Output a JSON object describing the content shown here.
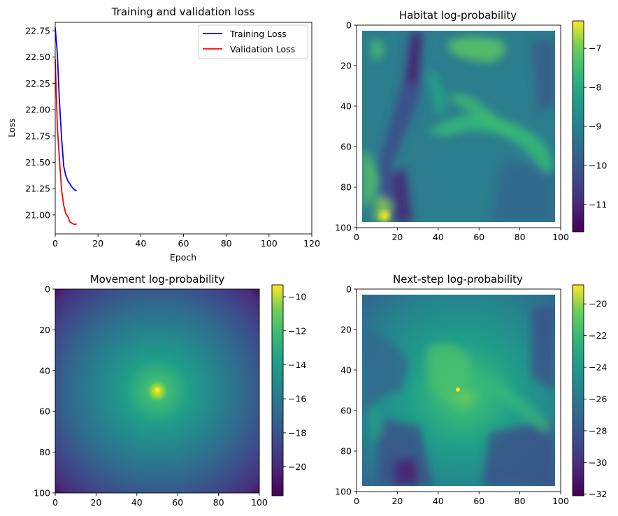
{
  "chart_data": [
    {
      "type": "line",
      "title": "Training and validation loss",
      "xlabel": "Epoch",
      "ylabel": "Loss",
      "xlim": [
        0,
        120
      ],
      "ylim": [
        20.82,
        22.83
      ],
      "xticks": [
        0,
        20,
        40,
        60,
        80,
        100,
        120
      ],
      "yticks": [
        21.0,
        21.25,
        21.5,
        21.75,
        22.0,
        22.25,
        22.5,
        22.75
      ],
      "ytick_labels": [
        "21.00",
        "21.25",
        "21.50",
        "21.75",
        "22.00",
        "22.25",
        "22.50",
        "22.75"
      ],
      "grid": false,
      "legend": "top-right",
      "series": [
        {
          "name": "Training Loss",
          "color": "#0000ff",
          "x": [
            0,
            1,
            2,
            3,
            4,
            5,
            6,
            7,
            8,
            9,
            10
          ],
          "y": [
            22.78,
            22.52,
            22.07,
            21.72,
            21.46,
            21.37,
            21.32,
            21.29,
            21.26,
            21.24,
            21.23
          ]
        },
        {
          "name": "Validation Loss",
          "color": "#ff0000",
          "x": [
            0,
            1,
            2,
            3,
            4,
            5,
            6,
            7,
            8,
            9,
            10
          ],
          "y": [
            22.48,
            21.83,
            21.52,
            21.23,
            21.09,
            21.01,
            20.98,
            20.93,
            20.92,
            20.91,
            20.915
          ]
        }
      ]
    },
    {
      "type": "heatmap",
      "title": "Habitat log-probability",
      "xlim": [
        0,
        100
      ],
      "ylim": [
        100,
        0
      ],
      "xticks": [
        0,
        20,
        40,
        60,
        80,
        100
      ],
      "yticks": [
        0,
        20,
        40,
        60,
        80,
        100
      ],
      "colorbar": {
        "min": -11.7,
        "max": -6.3,
        "ticks": [
          -7,
          -8,
          -9,
          -10,
          -11
        ],
        "tick_labels": [
          "−7",
          "−8",
          "−9",
          "−10",
          "−11"
        ]
      },
      "colormap": "viridis"
    },
    {
      "type": "heatmap",
      "title": "Movement log-probability",
      "xlim": [
        0,
        100
      ],
      "ylim": [
        100,
        0
      ],
      "xticks": [
        0,
        20,
        40,
        60,
        80,
        100
      ],
      "yticks": [
        0,
        20,
        40,
        60,
        80,
        100
      ],
      "colorbar": {
        "min": -21.7,
        "max": -9.3,
        "ticks": [
          -10,
          -12,
          -14,
          -16,
          -18,
          -20
        ],
        "tick_labels": [
          "−10",
          "−12",
          "−14",
          "−16",
          "−18",
          "−20"
        ]
      },
      "colormap": "viridis"
    },
    {
      "type": "heatmap",
      "title": "Next-step log-probability",
      "xlim": [
        0,
        100
      ],
      "ylim": [
        100,
        0
      ],
      "xticks": [
        0,
        20,
        40,
        60,
        80,
        100
      ],
      "yticks": [
        0,
        20,
        40,
        60,
        80,
        100
      ],
      "colorbar": {
        "min": -32.1,
        "max": -18.8,
        "ticks": [
          -20,
          -22,
          -24,
          -26,
          -28,
          -30,
          -32
        ],
        "tick_labels": [
          "−20",
          "−22",
          "−24",
          "−26",
          "−28",
          "−30",
          "−32"
        ]
      },
      "colormap": "viridis"
    }
  ]
}
